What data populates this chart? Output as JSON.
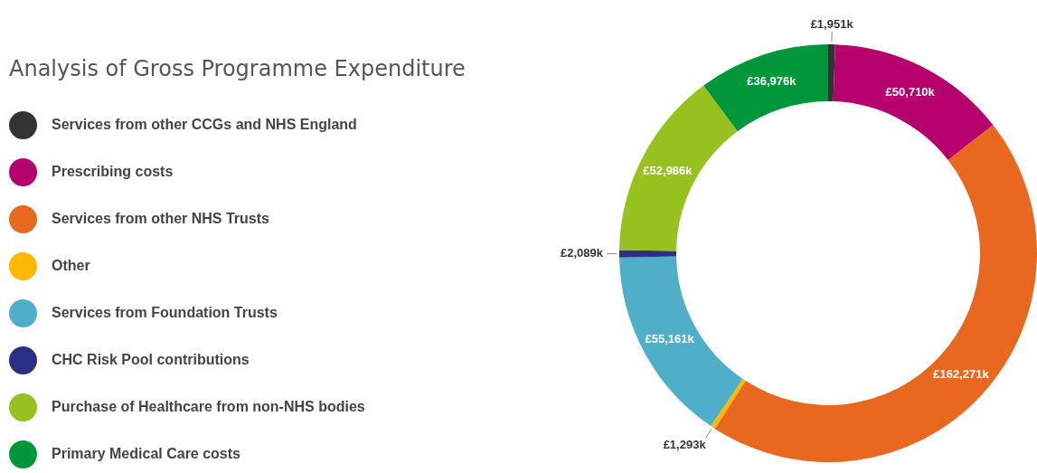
{
  "chart_data": {
    "type": "donut",
    "title": "Analysis of Gross Programme Expenditure",
    "categories": [
      "Services from other CCGs and NHS England",
      "Prescribing costs",
      "Services from other NHS Trusts",
      "Other",
      "Services from Foundation Trusts",
      "CHC Risk Pool contributions",
      "Purchase of Healthcare from non-NHS bodies",
      "Primary Medical Care costs"
    ],
    "values": [
      1951,
      50710,
      162271,
      1293,
      55161,
      2089,
      52986,
      36976
    ],
    "value_labels": [
      "£1,951k",
      "£50,710k",
      "£162,271k",
      "£1,293k",
      "£55,161k",
      "£2,089k",
      "£52,986k",
      "£36,976k"
    ],
    "colors": [
      "#333333",
      "#b5006e",
      "#e8681f",
      "#fbb900",
      "#4fafc8",
      "#2b2f86",
      "#96c11f",
      "#00973b"
    ],
    "legend": "left"
  }
}
